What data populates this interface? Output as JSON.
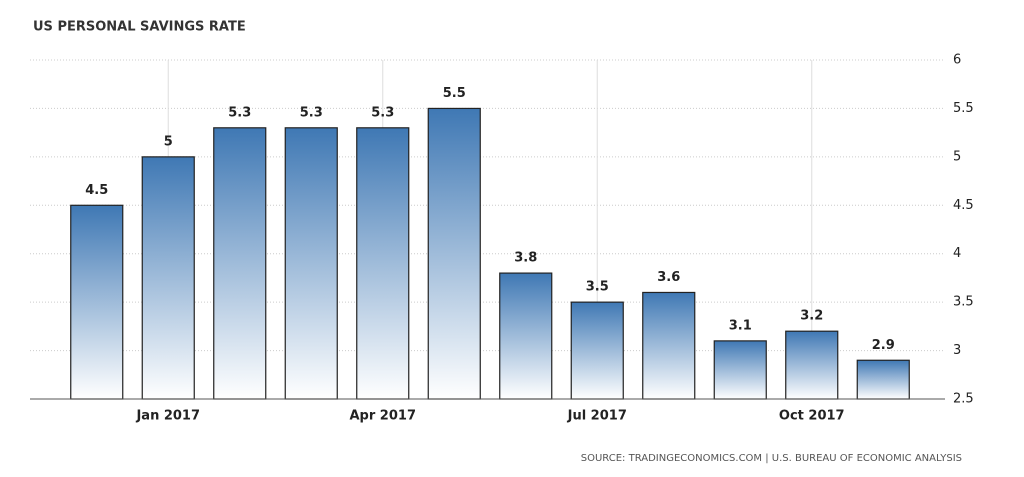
{
  "chart_data": {
    "type": "bar",
    "title": "US PERSONAL SAVINGS RATE",
    "source": "SOURCE: TRADINGECONOMICS.COM | U.S. BUREAU OF ECONOMIC ANALYSIS",
    "categories": [
      null,
      "Jan 2017",
      null,
      null,
      "Apr 2017",
      null,
      null,
      "Jul 2017",
      null,
      null,
      "Oct 2017",
      null
    ],
    "values": [
      4.5,
      5,
      5.3,
      5.3,
      5.3,
      5.5,
      3.8,
      3.5,
      3.6,
      3.1,
      3.2,
      2.9
    ],
    "color": "#3f78b4",
    "ylim": [
      2.5,
      6
    ],
    "yticks": [
      2.5,
      3,
      3.5,
      4,
      4.5,
      5,
      5.5,
      6
    ],
    "grid": true
  }
}
